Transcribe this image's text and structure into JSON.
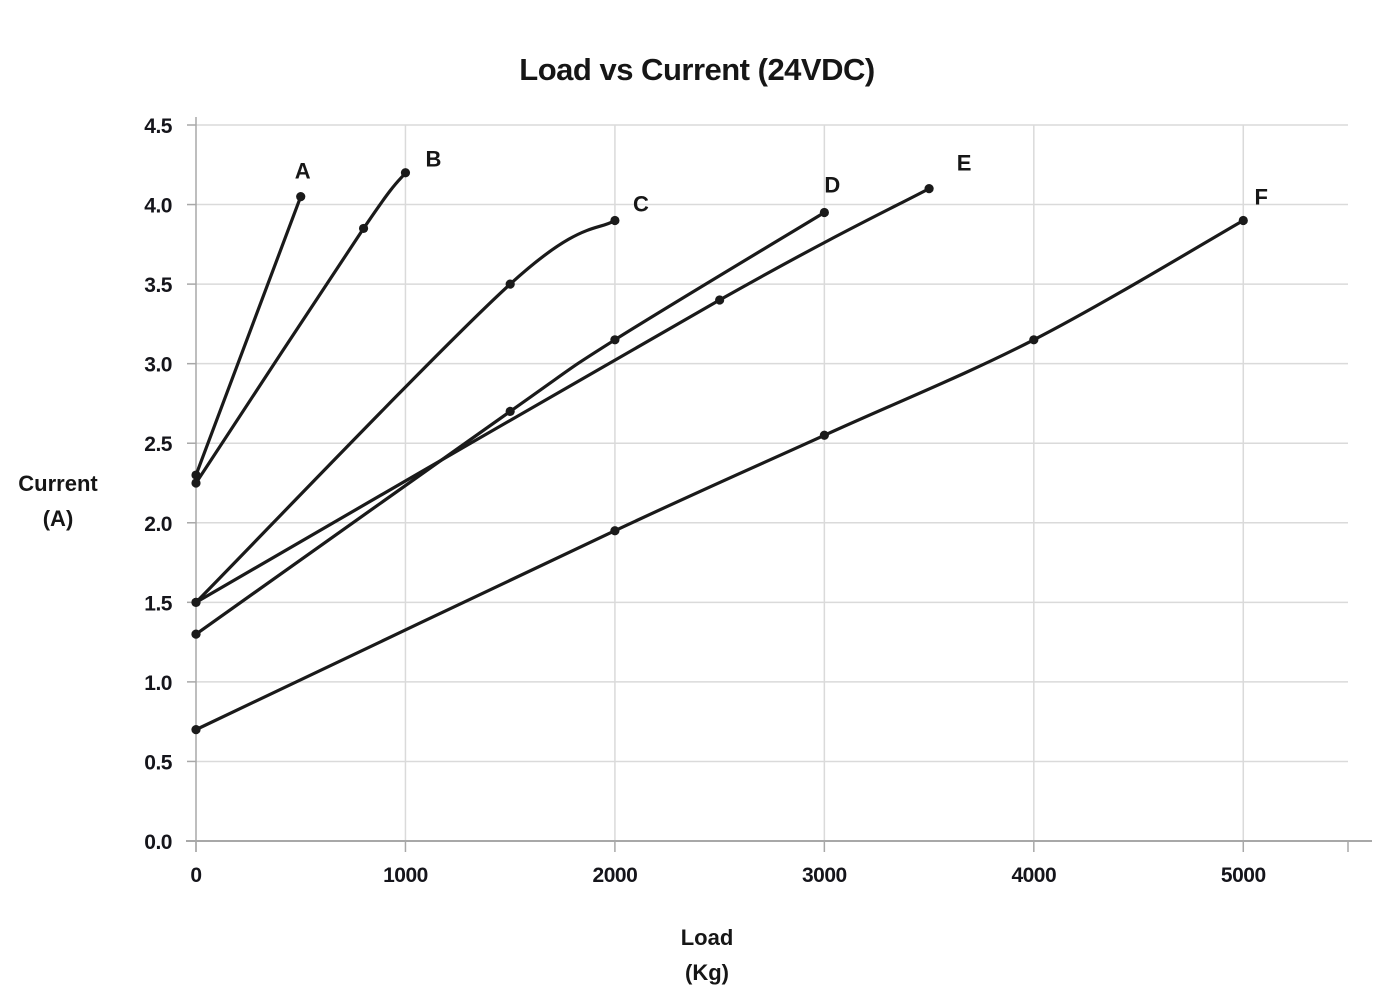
{
  "chart_data": {
    "type": "line",
    "title": "Load vs Current (24VDC)",
    "xlabel_lines": [
      "Load",
      "(Kg)"
    ],
    "ylabel_lines": [
      "Current",
      "(A)"
    ],
    "xlim": [
      0,
      5500
    ],
    "ylim": [
      0,
      4.5
    ],
    "xticks": [
      0,
      1000,
      2000,
      3000,
      4000,
      5000
    ],
    "yticks": [
      0.0,
      0.5,
      1.0,
      1.5,
      2.0,
      2.5,
      3.0,
      3.5,
      4.0,
      4.5
    ],
    "grid": true,
    "legend_position": "inline-labels-at-line-ends",
    "line_color": "#1a1a1a",
    "grid_color": "#dadada",
    "axis_color": "#a8a8a8",
    "series": [
      {
        "name": "A",
        "x": [
          0,
          500
        ],
        "y": [
          2.3,
          4.05
        ],
        "label_dx": 2,
        "label_dy": -18
      },
      {
        "name": "B",
        "x": [
          0,
          800,
          1000
        ],
        "y": [
          2.25,
          3.85,
          4.2
        ],
        "label_dx": 28,
        "label_dy": -6
      },
      {
        "name": "C",
        "x": [
          0,
          1500,
          2000
        ],
        "y": [
          1.5,
          3.5,
          3.9
        ],
        "label_dx": 26,
        "label_dy": -9
      },
      {
        "name": "D",
        "x": [
          0,
          1500,
          2000,
          3000
        ],
        "y": [
          1.3,
          2.7,
          3.15,
          3.95
        ],
        "label_dx": 8,
        "label_dy": -20
      },
      {
        "name": "E",
        "x": [
          0,
          2500,
          3500
        ],
        "y": [
          1.5,
          3.4,
          4.1
        ],
        "label_dx": 35,
        "label_dy": -18
      },
      {
        "name": "F",
        "x": [
          0,
          2000,
          3000,
          4000,
          5000
        ],
        "y": [
          0.7,
          1.95,
          2.55,
          3.15,
          3.9
        ],
        "label_dx": 18,
        "label_dy": -16
      }
    ]
  }
}
